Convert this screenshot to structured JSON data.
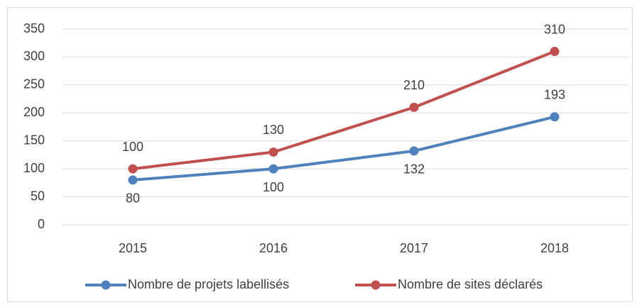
{
  "chart_data": {
    "type": "line",
    "categories": [
      "2015",
      "2016",
      "2017",
      "2018"
    ],
    "series": [
      {
        "name": "Nombre de projets labellisés",
        "color": "#4f81bd",
        "values": [
          80,
          100,
          132,
          193
        ]
      },
      {
        "name": "Nombre de sites déclarés",
        "color": "#c0504d",
        "values": [
          100,
          130,
          210,
          310
        ]
      }
    ],
    "ylim": [
      0,
      350
    ],
    "yticks": [
      0,
      50,
      100,
      150,
      200,
      250,
      300,
      350
    ],
    "grid": true,
    "legend": "bottom"
  }
}
